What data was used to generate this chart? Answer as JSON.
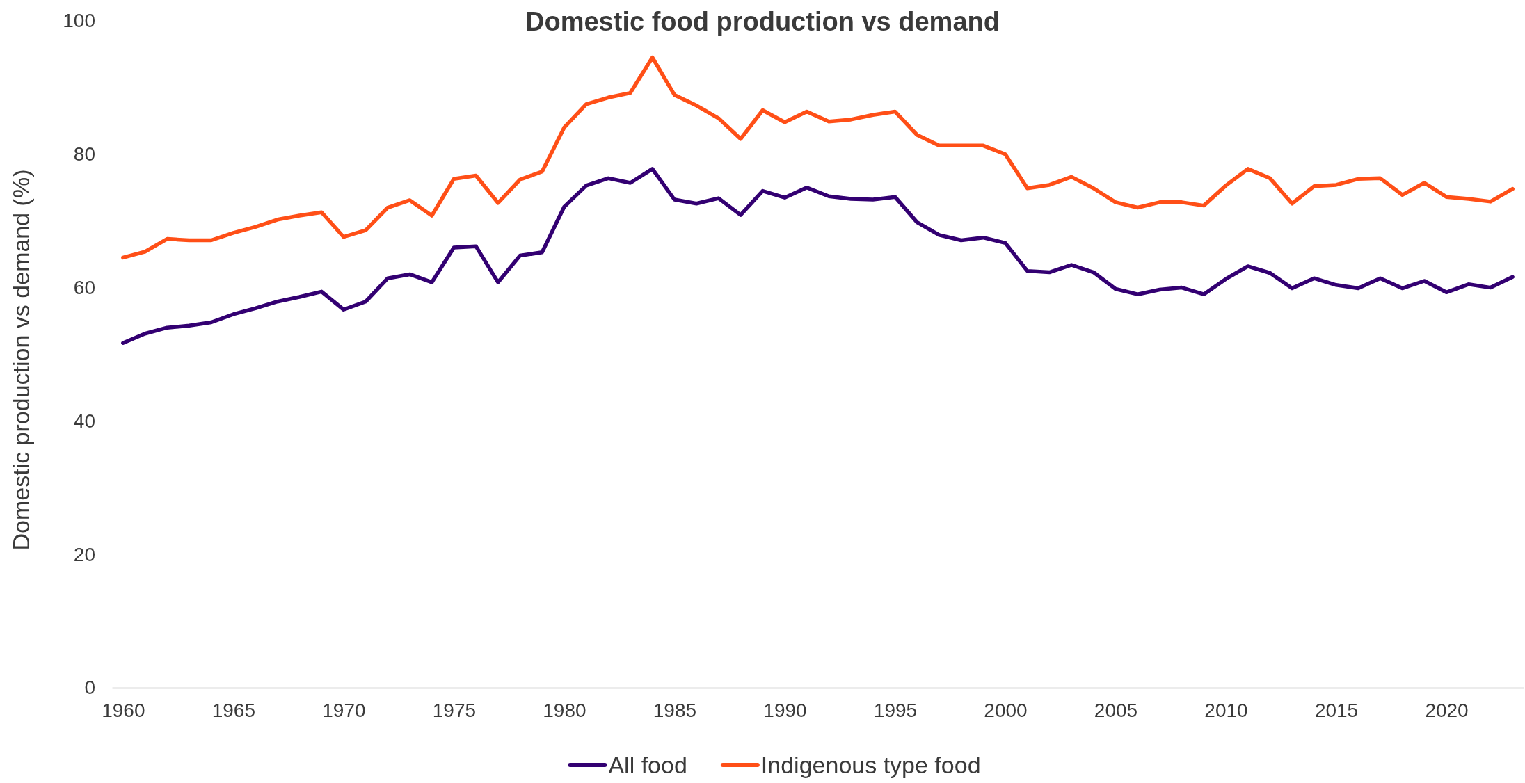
{
  "chart_data": {
    "type": "line",
    "title": "Domestic food production vs demand",
    "ylabel": "Domestic production vs demand (%)",
    "x": [
      1960,
      1961,
      1962,
      1963,
      1964,
      1965,
      1966,
      1967,
      1968,
      1969,
      1970,
      1971,
      1972,
      1973,
      1974,
      1975,
      1976,
      1977,
      1978,
      1979,
      1980,
      1981,
      1982,
      1983,
      1984,
      1985,
      1986,
      1987,
      1988,
      1989,
      1990,
      1991,
      1992,
      1993,
      1994,
      1995,
      1996,
      1997,
      1998,
      1999,
      2000,
      2001,
      2002,
      2003,
      2004,
      2005,
      2006,
      2007,
      2008,
      2009,
      2010,
      2011,
      2012,
      2013,
      2014,
      2015,
      2016,
      2017,
      2018,
      2019,
      2020,
      2021,
      2022,
      2023
    ],
    "series": [
      {
        "name": "All food",
        "color": "#330072",
        "values": [
          51.7,
          53.1,
          54.0,
          54.3,
          54.8,
          56.0,
          56.9,
          57.9,
          58.6,
          59.4,
          56.7,
          57.9,
          61.4,
          62.0,
          60.8,
          66.0,
          66.2,
          60.8,
          64.8,
          65.3,
          72.1,
          75.3,
          76.4,
          75.7,
          77.8,
          73.2,
          72.6,
          73.4,
          70.9,
          74.5,
          73.5,
          75.0,
          73.7,
          73.3,
          73.2,
          73.6,
          69.8,
          67.9,
          67.1,
          67.5,
          66.7,
          62.5,
          62.3,
          63.4,
          62.3,
          59.8,
          59.0,
          59.7,
          60.0,
          59.0,
          61.3,
          63.2,
          62.2,
          59.9,
          61.4,
          60.4,
          59.9,
          61.4,
          59.9,
          61.0,
          59.3,
          60.5,
          60.0,
          61.6
        ]
      },
      {
        "name": "Indigenous type food",
        "color": "#ff4f17",
        "values": [
          64.5,
          65.4,
          67.3,
          67.1,
          67.1,
          68.2,
          69.1,
          70.2,
          70.8,
          71.3,
          67.6,
          68.6,
          72.0,
          73.1,
          70.8,
          76.3,
          76.8,
          72.7,
          76.2,
          77.4,
          84.0,
          87.5,
          88.5,
          89.2,
          94.5,
          88.9,
          87.3,
          85.4,
          82.3,
          86.6,
          84.8,
          86.4,
          84.9,
          85.2,
          85.9,
          86.4,
          82.9,
          81.3,
          81.3,
          81.3,
          80.0,
          74.9,
          75.4,
          76.6,
          74.9,
          72.8,
          72.0,
          72.8,
          72.8,
          72.3,
          75.3,
          77.8,
          76.4,
          72.6,
          75.2,
          75.4,
          76.3,
          76.4,
          73.9,
          75.7,
          73.6,
          73.3,
          72.9,
          74.8
        ]
      }
    ],
    "xlim": [
      1959.5,
      2023.5
    ],
    "xticks": [
      1960,
      1965,
      1970,
      1975,
      1980,
      1985,
      1990,
      1995,
      2000,
      2005,
      2010,
      2015,
      2020
    ],
    "ylim": [
      0,
      100
    ],
    "yticks": [
      0,
      20,
      40,
      60,
      80,
      100
    ],
    "legend": "bottom"
  }
}
